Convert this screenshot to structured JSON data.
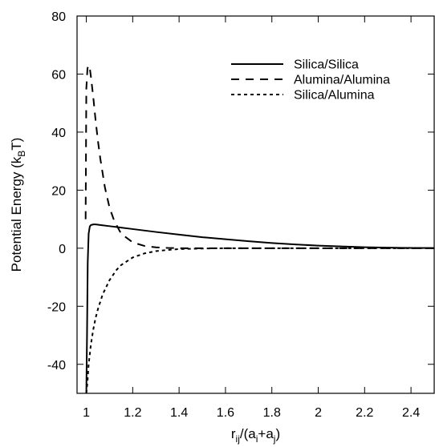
{
  "chart_data": {
    "type": "line",
    "title": "",
    "xlabel": "r_ij/(a_i+a_j)",
    "ylabel": "Potential Energy (k_B T)",
    "xlim": [
      0.96,
      2.5
    ],
    "ylim": [
      -50,
      80
    ],
    "xticks": [
      1,
      1.2,
      1.4,
      1.6,
      1.8,
      2,
      2.2,
      2.4
    ],
    "xtick_labels": [
      "1",
      "1.2",
      "1.4",
      "1.6",
      "1.8",
      "2",
      "2.2",
      "2.4"
    ],
    "yticks": [
      -40,
      -20,
      0,
      20,
      40,
      60,
      80
    ],
    "ytick_labels": [
      "-40",
      "-20",
      "0",
      "20",
      "40",
      "60",
      "80"
    ],
    "grid": false,
    "legend": "top-right",
    "series": [
      {
        "name": "Silica/Silica",
        "dash": "solid",
        "x": [
          1.0,
          1.003,
          1.006,
          1.01,
          1.015,
          1.02,
          1.03,
          1.04,
          1.05,
          1.07,
          1.1,
          1.15,
          1.2,
          1.3,
          1.4,
          1.5,
          1.6,
          1.7,
          1.8,
          1.9,
          2.0,
          2.1,
          2.2,
          2.3,
          2.4,
          2.5
        ],
        "y": [
          -50,
          -30,
          -5,
          5,
          7.5,
          8.0,
          8.2,
          8.2,
          8.1,
          7.9,
          7.6,
          7.1,
          6.6,
          5.6,
          4.7,
          3.8,
          3.1,
          2.4,
          1.8,
          1.3,
          0.9,
          0.6,
          0.35,
          0.2,
          0.1,
          0.05
        ]
      },
      {
        "name": "Alumina/Alumina",
        "dash": "dashed",
        "x": [
          0.997,
          0.999,
          1.0,
          1.005,
          1.01,
          1.015,
          1.02,
          1.03,
          1.04,
          1.05,
          1.06,
          1.08,
          1.1,
          1.12,
          1.15,
          1.2,
          1.25,
          1.3,
          1.35,
          1.4,
          1.5,
          1.6,
          1.8,
          2.0,
          2.2,
          2.4,
          2.5
        ],
        "y": [
          10,
          40,
          55,
          62,
          63,
          62,
          59,
          52,
          44,
          37,
          31,
          21,
          14,
          9.5,
          5.0,
          2.0,
          0.8,
          0.3,
          0.1,
          0,
          0,
          0,
          0,
          0,
          0,
          0,
          0
        ]
      },
      {
        "name": "Silica/Alumina",
        "dash": "dotted",
        "x": [
          1.0,
          1.005,
          1.01,
          1.02,
          1.03,
          1.04,
          1.05,
          1.07,
          1.1,
          1.13,
          1.15,
          1.2,
          1.25,
          1.3,
          1.35,
          1.4,
          1.5,
          1.6,
          1.8,
          2.0,
          2.2,
          2.4,
          2.5
        ],
        "y": [
          -50,
          -46,
          -40,
          -33,
          -28,
          -24,
          -21,
          -16,
          -11,
          -7.5,
          -5.8,
          -3.2,
          -1.8,
          -1.0,
          -0.6,
          -0.3,
          -0.1,
          0,
          0,
          0,
          0,
          0,
          0
        ]
      }
    ]
  }
}
